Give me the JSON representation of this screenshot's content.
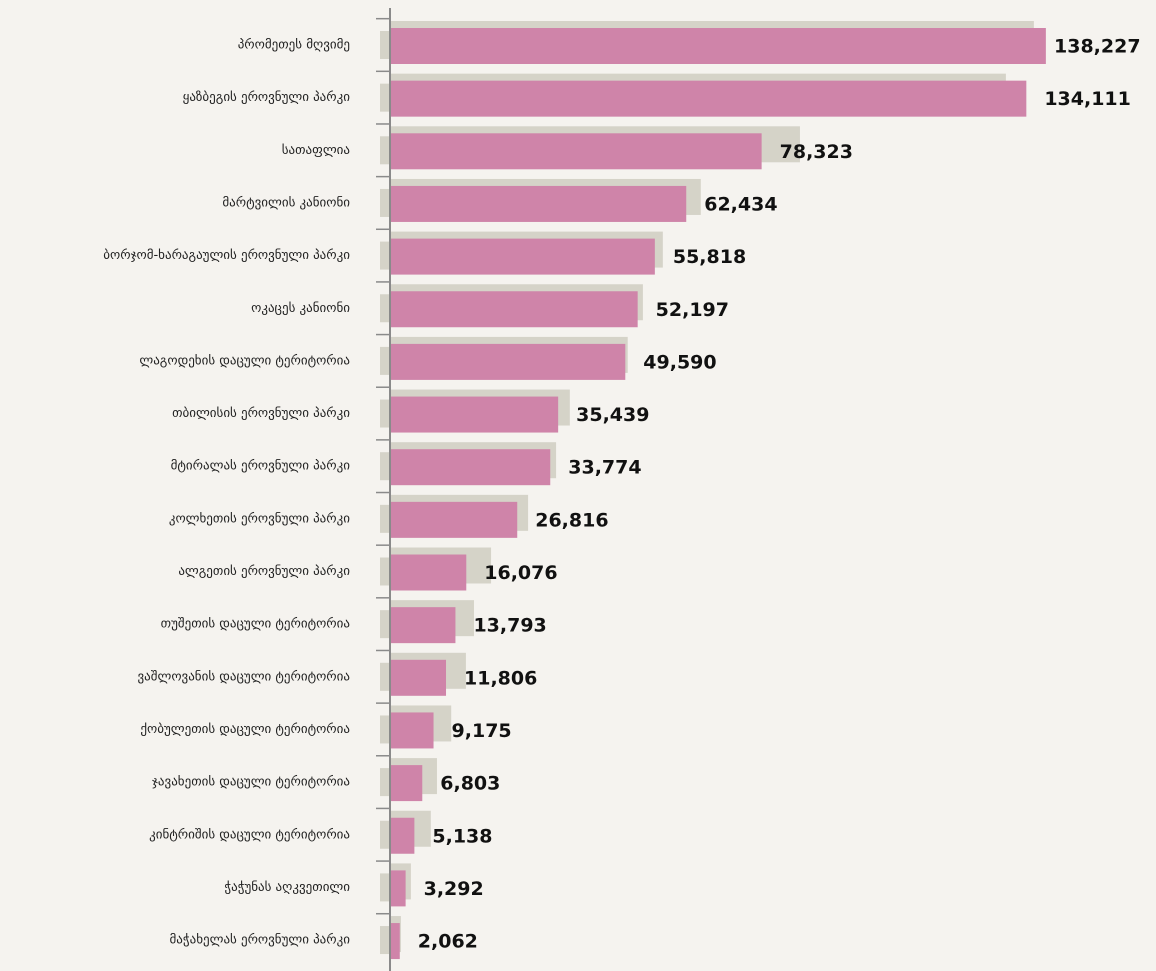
{
  "chart_data": {
    "type": "barh",
    "categories": [
      "პრომეთეს მღვიმე",
      "ყაზბეგის ეროვნული პარკი",
      "სათაფლია",
      "მარტვილის კანიონი",
      "ბორჯომ-ხარაგაულის ეროვნული პარკი",
      "ოკაცეს კანიონი",
      "ლაგოდეხის დაცული ტერიტორია",
      "თბილისის ეროვნული პარკი",
      "მტირალას ეროვნული პარკი",
      "კოლხეთის ეროვნული პარკი",
      "ალგეთის ეროვნული პარკი",
      "თუშეთის დაცული ტერიტორია",
      "ვაშლოვანის დაცული ტერიტორია",
      "ქობულეთის დაცული ტერიტორია",
      "ჯავახეთის დაცული ტერიტორია",
      "კინტრიშის დაცული ტერიტორია",
      "ჭაჭუნას აღკვეთილი",
      "მაჭახელას ეროვნული პარკი"
    ],
    "series": [
      {
        "color": "#d5d3c8",
        "values": [
          135700,
          129800,
          86400,
          65500,
          57500,
          53300,
          50100,
          37900,
          35000,
          29100,
          21300,
          17700,
          16000,
          12900,
          9900,
          8600,
          4400,
          2300
        ]
      },
      {
        "color": "#cf84a9",
        "values": [
          138227,
          134111,
          78323,
          62434,
          55818,
          52197,
          49590,
          35439,
          33774,
          26816,
          16076,
          13793,
          11806,
          9175,
          6803,
          5138,
          3292,
          2062
        ],
        "value_labels": [
          "138,227",
          "134,111",
          "78,323",
          "62,434",
          "55,818",
          "52,197",
          "49,590",
          "35,439",
          "33,774",
          "26,816",
          "16,076",
          "13,793",
          "11,806",
          "9,175",
          "6,803",
          "5,138",
          "3,292",
          "2,062"
        ]
      }
    ],
    "xlim": [
      0,
      145000
    ]
  }
}
